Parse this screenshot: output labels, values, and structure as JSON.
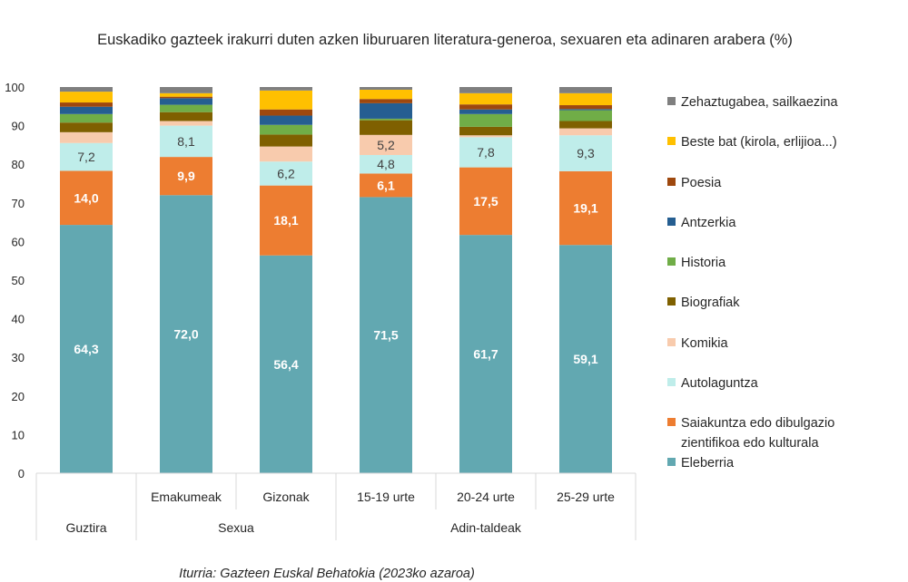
{
  "chart_data": {
    "type": "bar",
    "stacked": true,
    "title": "Euskadiko gazteek irakurri duten azken liburuaren literatura-generoa, sexuaren eta adinaren arabera (%)",
    "source": "Iturria: Gazteen Euskal Behatokia (2023ko azaroa)",
    "ylim": [
      0,
      100
    ],
    "yticks": [
      0,
      10,
      20,
      30,
      40,
      50,
      60,
      70,
      80,
      90,
      100
    ],
    "grid": false,
    "legend_position": "right",
    "categories": [
      "Guztira",
      "Emakumeak",
      "Gizonak",
      "15-19 urte",
      "20-24 urte",
      "25-29 urte"
    ],
    "groups": [
      {
        "label": "Guztira",
        "categories": [
          "Guztira"
        ]
      },
      {
        "label": "Sexua",
        "categories": [
          "Emakumeak",
          "Gizonak"
        ]
      },
      {
        "label": "Adin-taldeak",
        "categories": [
          "15-19 urte",
          "20-24 urte",
          "25-29 urte"
        ]
      }
    ],
    "series": [
      {
        "name": "Eleberria",
        "color": "#62A8B1",
        "labeled": true,
        "values": [
          64.3,
          72.0,
          56.4,
          71.5,
          61.7,
          59.1
        ]
      },
      {
        "name": "Saiakuntza edo dibulgazio zientifikoa edo kulturala",
        "color": "#ED7D31",
        "labeled": true,
        "values": [
          14.0,
          9.9,
          18.1,
          6.1,
          17.5,
          19.1
        ]
      },
      {
        "name": "Autolaguntza",
        "color": "#BFEDEA",
        "labeled": true,
        "values": [
          7.2,
          8.1,
          6.2,
          4.8,
          7.8,
          9.3
        ]
      },
      {
        "name": "Komikia",
        "color": "#F8CBAD",
        "labeled": [
          false,
          false,
          false,
          true,
          false,
          false
        ],
        "values": [
          2.8,
          1.2,
          3.9,
          5.2,
          0.5,
          1.8
        ]
      },
      {
        "name": "Biografiak",
        "color": "#7F6000",
        "labeled": false,
        "values": [
          2.5,
          2.3,
          3.1,
          3.8,
          2.2,
          1.9
        ]
      },
      {
        "name": "Historia",
        "color": "#70AD47",
        "labeled": false,
        "values": [
          2.2,
          1.9,
          2.5,
          0.4,
          3.3,
          2.8
        ]
      },
      {
        "name": "Antzerkia",
        "color": "#255E91",
        "labeled": false,
        "values": [
          1.9,
          1.7,
          2.4,
          4.0,
          1.2,
          0.3
        ]
      },
      {
        "name": "Poesia",
        "color": "#9E480E",
        "labeled": false,
        "values": [
          1.1,
          0.4,
          1.6,
          1.1,
          1.3,
          1.0
        ]
      },
      {
        "name": "Beste bat (kirola, erlijioa...)",
        "color": "#FFC000",
        "labeled": false,
        "values": [
          2.8,
          0.9,
          4.9,
          2.4,
          2.9,
          3.1
        ]
      },
      {
        "name": "Zehaztugabea, sailkaezina",
        "color": "#7F7F7F",
        "labeled": false,
        "values": [
          1.2,
          1.6,
          0.9,
          0.7,
          1.6,
          1.6
        ]
      }
    ],
    "legend_lines": {
      "Saiakuntza edo dibulgazio zientifikoa edo kulturala": [
        "Saiakuntza edo dibulgazio",
        "zientifikoa edo kulturala"
      ]
    }
  }
}
